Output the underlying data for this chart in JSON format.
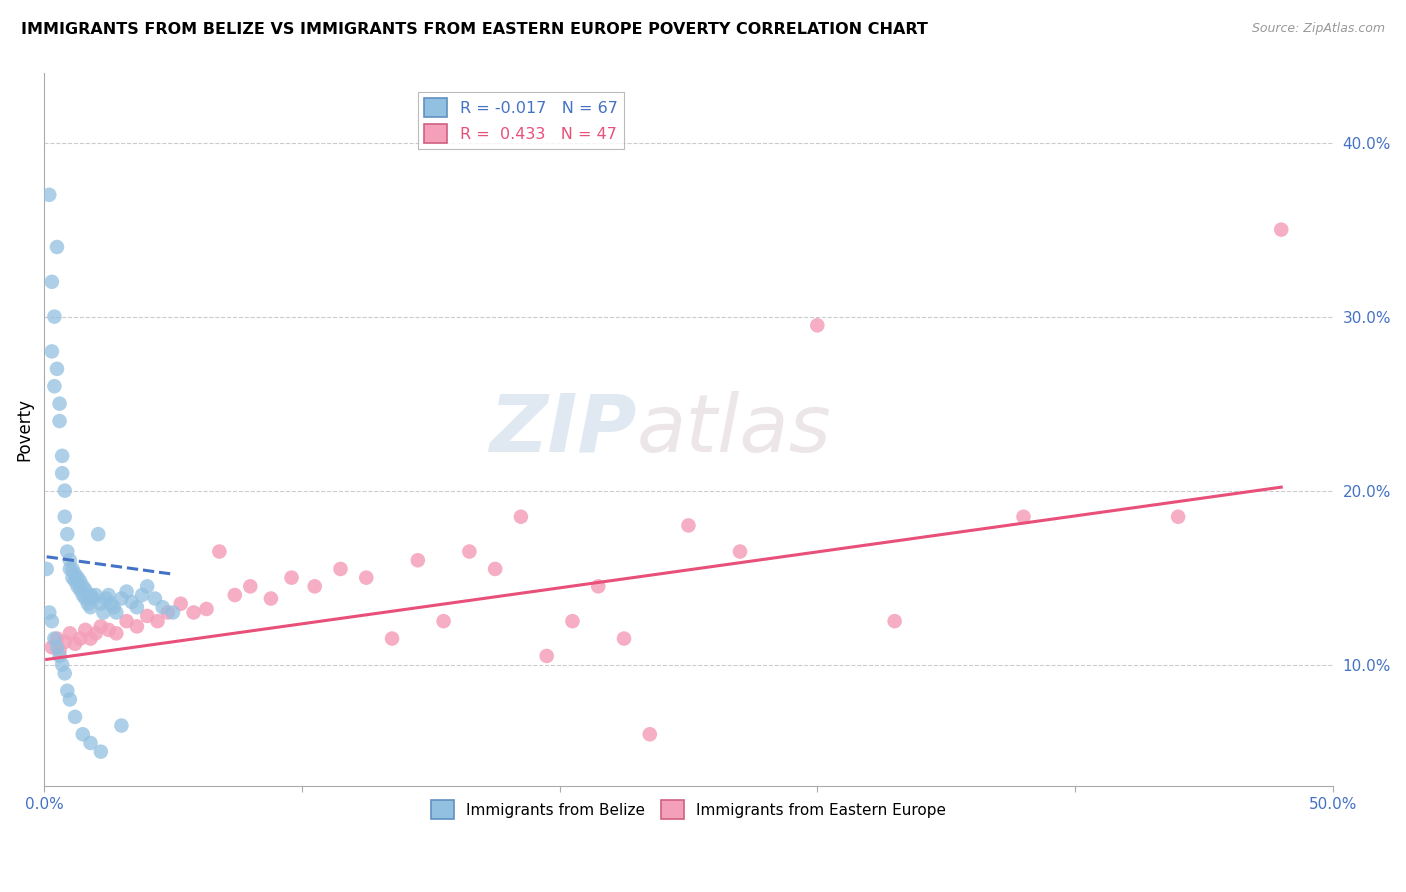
{
  "title": "IMMIGRANTS FROM BELIZE VS IMMIGRANTS FROM EASTERN EUROPE POVERTY CORRELATION CHART",
  "source": "Source: ZipAtlas.com",
  "ylabel": "Poverty",
  "right_yticks": [
    "10.0%",
    "20.0%",
    "30.0%",
    "40.0%"
  ],
  "right_ytick_vals": [
    0.1,
    0.2,
    0.3,
    0.4
  ],
  "xlim": [
    0.0,
    0.5
  ],
  "ylim": [
    0.03,
    0.44
  ],
  "legend_belize_R": "-0.017",
  "legend_belize_N": "67",
  "legend_ee_R": "0.433",
  "legend_ee_N": "47",
  "belize_color": "#92C0E0",
  "ee_color": "#F4A0BA",
  "belize_line_color": "#4472C4",
  "ee_line_color": "#E8507A",
  "watermark_zip": "ZIP",
  "watermark_atlas": "atlas",
  "belize_scatter_x": [
    0.002,
    0.003,
    0.003,
    0.004,
    0.004,
    0.005,
    0.005,
    0.006,
    0.006,
    0.007,
    0.007,
    0.008,
    0.008,
    0.009,
    0.009,
    0.01,
    0.01,
    0.011,
    0.011,
    0.012,
    0.012,
    0.013,
    0.013,
    0.014,
    0.014,
    0.015,
    0.015,
    0.016,
    0.016,
    0.017,
    0.017,
    0.018,
    0.018,
    0.019,
    0.02,
    0.021,
    0.022,
    0.023,
    0.024,
    0.025,
    0.026,
    0.027,
    0.028,
    0.03,
    0.032,
    0.034,
    0.036,
    0.038,
    0.04,
    0.043,
    0.046,
    0.05,
    0.001,
    0.002,
    0.003,
    0.004,
    0.005,
    0.006,
    0.007,
    0.008,
    0.009,
    0.01,
    0.012,
    0.015,
    0.018,
    0.022,
    0.03
  ],
  "belize_scatter_y": [
    0.37,
    0.32,
    0.28,
    0.3,
    0.26,
    0.34,
    0.27,
    0.25,
    0.24,
    0.22,
    0.21,
    0.2,
    0.185,
    0.175,
    0.165,
    0.16,
    0.155,
    0.155,
    0.15,
    0.152,
    0.148,
    0.15,
    0.145,
    0.148,
    0.143,
    0.145,
    0.14,
    0.143,
    0.138,
    0.14,
    0.135,
    0.14,
    0.133,
    0.138,
    0.14,
    0.175,
    0.135,
    0.13,
    0.138,
    0.14,
    0.135,
    0.133,
    0.13,
    0.138,
    0.142,
    0.136,
    0.133,
    0.14,
    0.145,
    0.138,
    0.133,
    0.13,
    0.155,
    0.13,
    0.125,
    0.115,
    0.11,
    0.105,
    0.1,
    0.095,
    0.085,
    0.08,
    0.07,
    0.06,
    0.055,
    0.05,
    0.065
  ],
  "ee_scatter_x": [
    0.003,
    0.005,
    0.006,
    0.008,
    0.01,
    0.012,
    0.014,
    0.016,
    0.018,
    0.02,
    0.022,
    0.025,
    0.028,
    0.032,
    0.036,
    0.04,
    0.044,
    0.048,
    0.053,
    0.058,
    0.063,
    0.068,
    0.074,
    0.08,
    0.088,
    0.096,
    0.105,
    0.115,
    0.125,
    0.135,
    0.145,
    0.155,
    0.165,
    0.175,
    0.185,
    0.195,
    0.205,
    0.215,
    0.225,
    0.235,
    0.25,
    0.27,
    0.3,
    0.33,
    0.38,
    0.44,
    0.48
  ],
  "ee_scatter_y": [
    0.11,
    0.115,
    0.108,
    0.113,
    0.118,
    0.112,
    0.115,
    0.12,
    0.115,
    0.118,
    0.122,
    0.12,
    0.118,
    0.125,
    0.122,
    0.128,
    0.125,
    0.13,
    0.135,
    0.13,
    0.132,
    0.165,
    0.14,
    0.145,
    0.138,
    0.15,
    0.145,
    0.155,
    0.15,
    0.115,
    0.16,
    0.125,
    0.165,
    0.155,
    0.185,
    0.105,
    0.125,
    0.145,
    0.115,
    0.06,
    0.18,
    0.165,
    0.295,
    0.125,
    0.185,
    0.185,
    0.35
  ],
  "belize_trend_x": [
    0.001,
    0.05
  ],
  "belize_trend_y": [
    0.162,
    0.152
  ],
  "ee_trend_x": [
    0.001,
    0.48
  ],
  "ee_trend_y": [
    0.103,
    0.202
  ]
}
